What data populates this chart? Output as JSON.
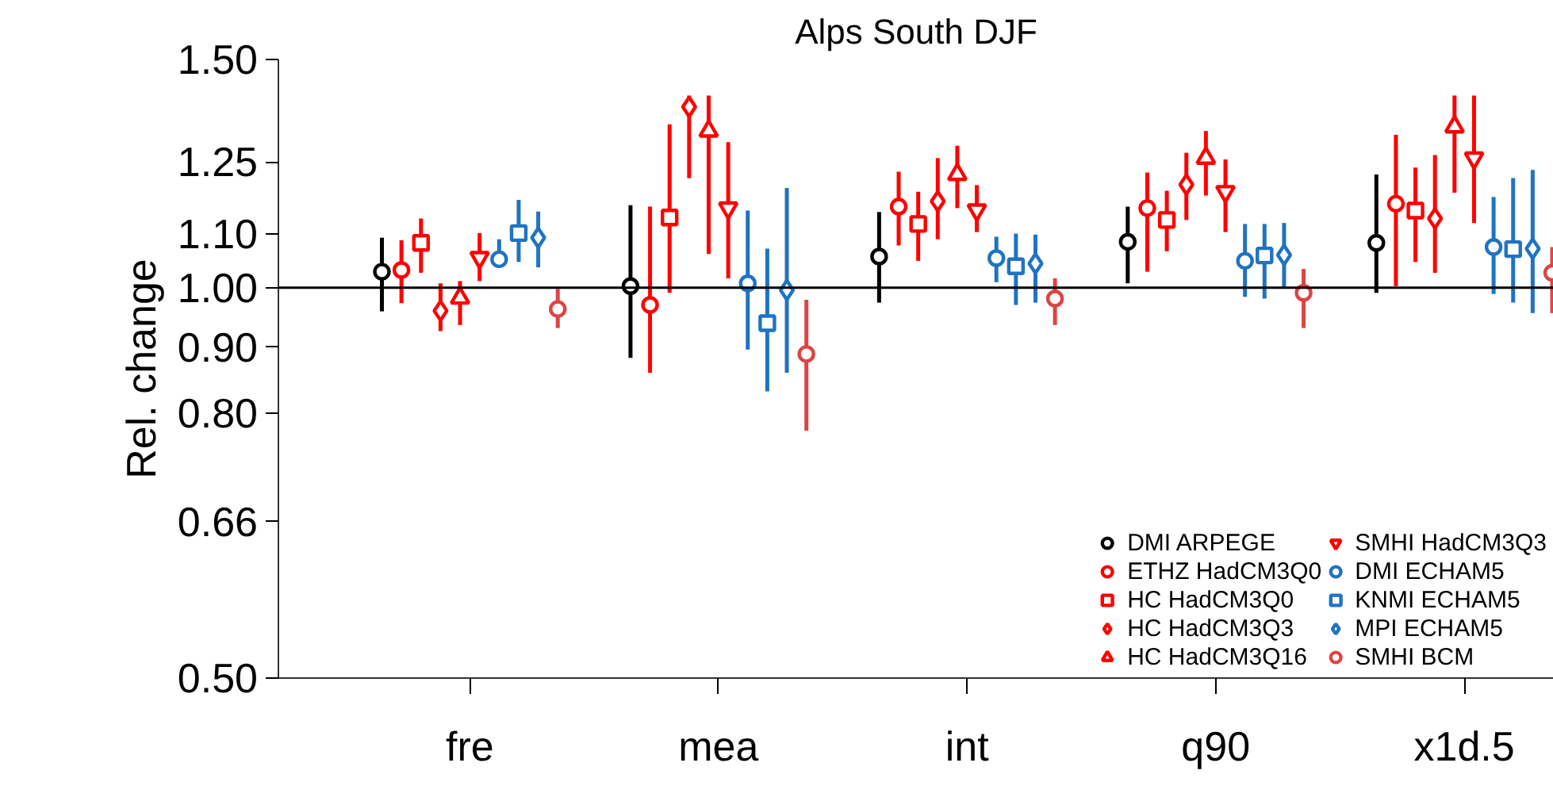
{
  "chart_data": {
    "type": "scatter",
    "title": "Alps South DJF",
    "ylabel": "Rel. change",
    "categories": [
      "fre",
      "mea",
      "int",
      "q90",
      "x1d.5"
    ],
    "log": "y",
    "ylim": [
      0.5,
      1.5
    ],
    "yticks": [
      {
        "value": 0.5,
        "label": "0.50"
      },
      {
        "value": 0.66,
        "label": "0.66"
      },
      {
        "value": 0.8,
        "label": "0.80"
      },
      {
        "value": 0.9,
        "label": "0.90"
      },
      {
        "value": 1.0,
        "label": "1.00"
      },
      {
        "value": 1.1,
        "label": "1.10"
      },
      {
        "value": 1.25,
        "label": "1.25"
      },
      {
        "value": 1.5,
        "label": "1.50"
      }
    ],
    "grid": false,
    "legend": "bottom right",
    "ref_lines": [
      {
        "axis": "y",
        "value": 1.0,
        "color": "#000000"
      }
    ],
    "series": [
      {
        "name": "DMI ARPEGE",
        "color": "#000000",
        "marker": "circle",
        "values": [
          1.029,
          1.003,
          1.057,
          1.085,
          1.083
        ],
        "errors": [
          [
            0.959,
            1.093
          ],
          [
            0.883,
            1.158
          ],
          [
            0.974,
            1.144
          ],
          [
            1.008,
            1.155
          ],
          [
            0.991,
            1.223
          ]
        ]
      },
      {
        "name": "ETHZ HadCM3Q0",
        "color": "#ff0000",
        "marker": "circle",
        "values": [
          1.032,
          0.97,
          1.155,
          1.152,
          1.161
        ],
        "errors": [
          [
            0.973,
            1.088
          ],
          [
            0.86,
            1.155
          ],
          [
            1.078,
            1.229
          ],
          [
            1.029,
            1.227
          ],
          [
            1.003,
            1.312
          ]
        ]
      },
      {
        "name": "HC HadCM3Q0",
        "color": "#ff0000",
        "marker": "square",
        "values": [
          1.083,
          1.133,
          1.12,
          1.128,
          1.147
        ],
        "errors": [
          [
            1.027,
            1.131
          ],
          [
            0.991,
            1.337
          ],
          [
            1.049,
            1.186
          ],
          [
            1.067,
            1.188
          ],
          [
            1.047,
            1.238
          ]
        ]
      },
      {
        "name": "HC HadCM3Q3",
        "color": "#ff0000",
        "marker": "diamond",
        "values": [
          0.96,
          1.379,
          1.166,
          1.201,
          1.131
        ],
        "errors": [
          [
            0.926,
            1.008
          ],
          [
            1.215,
            1.407
          ],
          [
            1.09,
            1.259
          ],
          [
            1.128,
            1.271
          ],
          [
            1.027,
            1.266
          ]
        ]
      },
      {
        "name": "HC HadCM3Q16",
        "color": "#ff0000",
        "marker": "triangle",
        "values": [
          0.982,
          1.321,
          1.223,
          1.259,
          1.331
        ],
        "errors": [
          [
            0.936,
            1.012
          ],
          [
            1.062,
            1.407
          ],
          [
            1.152,
            1.287
          ],
          [
            1.178,
            1.321
          ],
          [
            1.184,
            1.407
          ]
        ]
      },
      {
        "name": "SMHI HadCM3Q3",
        "color": "#ff0000",
        "values": [
          1.055,
          1.152,
          1.148,
          1.186,
          1.259
        ],
        "errors": [
          [
            1.012,
            1.102
          ],
          [
            1.017,
            1.295
          ],
          [
            1.104,
            1.2
          ],
          [
            1.104,
            1.256
          ],
          [
            1.122,
            1.407
          ]
        ]
      },
      {
        "name": "DMI ECHAM5",
        "color": "#1f73c2",
        "marker": "circle",
        "values": [
          1.052,
          1.008,
          1.054,
          1.049,
          1.075
        ],
        "errors": [
          [
            1.037,
            1.09
          ],
          [
            0.896,
            1.147
          ],
          [
            1.01,
            1.095
          ],
          [
            0.984,
            1.12
          ],
          [
            0.989,
            1.175
          ]
        ]
      },
      {
        "name": "KNMI ECHAM5",
        "color": "#1f73c2",
        "marker": "square",
        "values": [
          1.102,
          0.939,
          1.039,
          1.059,
          1.071
        ],
        "errors": [
          [
            1.047,
            1.169
          ],
          [
            0.832,
            1.072
          ],
          [
            0.97,
            1.101
          ],
          [
            0.981,
            1.12
          ],
          [
            0.974,
            1.215
          ]
        ]
      },
      {
        "name": "MPI ECHAM5",
        "color": "#1f73c2",
        "marker": "diamond",
        "values": [
          1.093,
          0.996,
          1.044,
          1.06,
          1.072
        ],
        "errors": [
          [
            1.037,
            1.145
          ],
          [
            0.86,
            1.194
          ],
          [
            0.974,
            1.099
          ],
          [
            1.0,
            1.122
          ],
          [
            0.956,
            1.233
          ]
        ]
      },
      {
        "name": "SMHI BCM",
        "color": "#dd4444",
        "marker": "circle",
        "values": [
          0.963,
          0.889,
          0.981,
          0.991,
          1.027
        ],
        "errors": [
          [
            0.931,
            0.998
          ],
          [
            0.776,
            0.979
          ],
          [
            0.936,
            1.017
          ],
          [
            0.931,
            1.034
          ],
          [
            0.956,
            1.075
          ]
        ]
      }
    ]
  }
}
